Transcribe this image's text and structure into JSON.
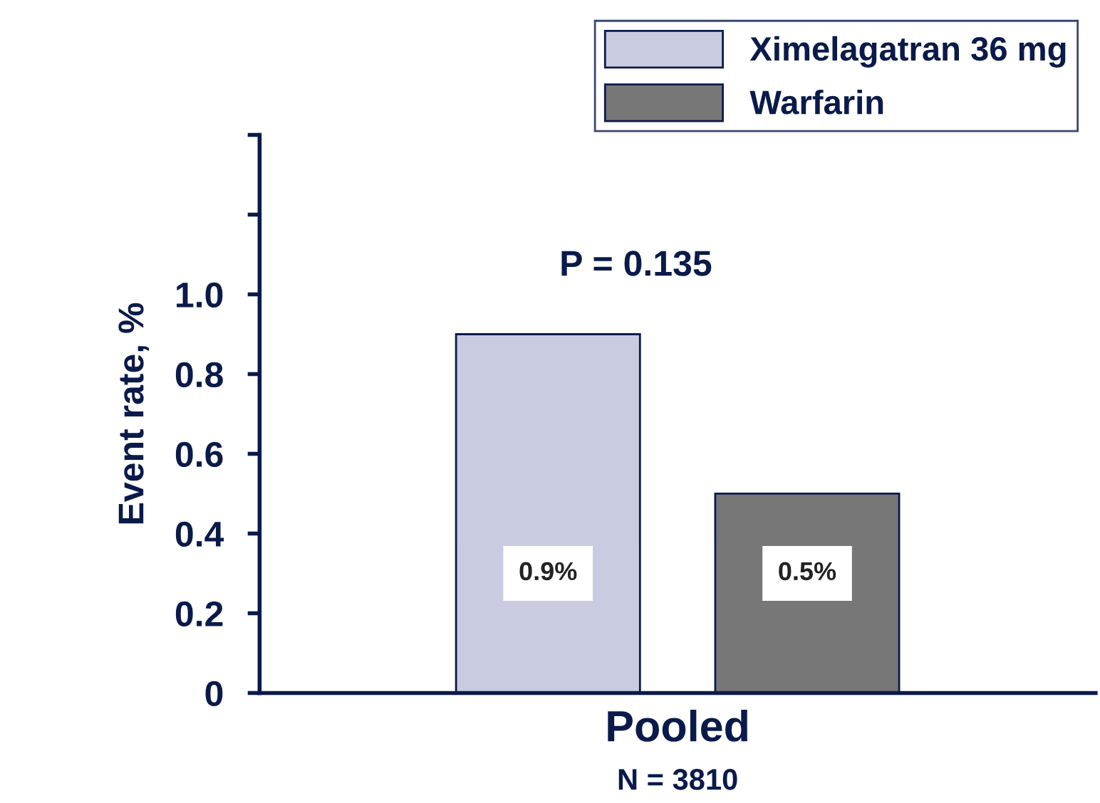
{
  "chart_data": {
    "type": "bar",
    "categories": [
      "Pooled"
    ],
    "xlabel": "N = 3810",
    "ylabel": "Event rate, %",
    "series": [
      {
        "name": "Ximelagatran 36 mg",
        "color": "#c9cce0",
        "values": [
          0.9
        ],
        "value_labels": [
          "0.9%"
        ]
      },
      {
        "name": "Warfarin",
        "color": "#777777",
        "values": [
          0.5
        ],
        "value_labels": [
          "0.5%"
        ]
      }
    ],
    "ylim": [
      0,
      1.4
    ],
    "yticks": [
      {
        "value": 0,
        "label": "0"
      },
      {
        "value": 0.2,
        "label": "0.2"
      },
      {
        "value": 0.4,
        "label": "0.4"
      },
      {
        "value": 0.6,
        "label": "0.6"
      },
      {
        "value": 0.8,
        "label": "0.8"
      },
      {
        "value": 1.0,
        "label": "1.0"
      },
      {
        "value": 1.2,
        "label": null
      },
      {
        "value": 1.4,
        "label": null
      }
    ],
    "annotations": [
      "P = 0.135"
    ],
    "legend": "top right",
    "grid": false
  }
}
